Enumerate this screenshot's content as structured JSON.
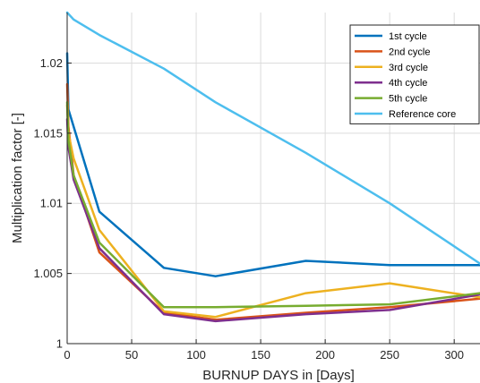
{
  "chart_data": {
    "type": "line",
    "title": "",
    "xlabel": "BURNUP DAYS in [Days]",
    "ylabel": "Multiplication factor [-]",
    "xlim": [
      0,
      320
    ],
    "ylim": [
      1.0,
      1.0236
    ],
    "xticks": [
      0,
      50,
      100,
      150,
      200,
      250,
      300
    ],
    "xtick_labels": [
      "0",
      "50",
      "100",
      "150",
      "200",
      "250",
      "300"
    ],
    "yticks": [
      1.0,
      1.005,
      1.01,
      1.015,
      1.02
    ],
    "ytick_labels": [
      "1",
      "1.005",
      "1.01",
      "1.015",
      "1.02"
    ],
    "grid": true,
    "legend_position": "top-right",
    "series": [
      {
        "name": "1st cycle",
        "color": "#0072BD",
        "x": [
          0,
          1,
          25,
          75,
          115,
          185,
          250,
          320
        ],
        "y": [
          1.0207,
          1.0167,
          1.0094,
          1.0054,
          1.0048,
          1.0059,
          1.0056,
          1.0056
        ]
      },
      {
        "name": "2nd cycle",
        "color": "#D95319",
        "x": [
          0,
          1,
          5,
          25,
          75,
          115,
          185,
          250,
          320
        ],
        "y": [
          1.0185,
          1.0155,
          1.012,
          1.0065,
          1.0022,
          1.0017,
          1.0022,
          1.0026,
          1.0032
        ]
      },
      {
        "name": "3rd cycle",
        "color": "#EDB120",
        "x": [
          0,
          1,
          5,
          25,
          75,
          115,
          185,
          250,
          320
        ],
        "y": [
          1.017,
          1.015,
          1.0132,
          1.0081,
          1.0023,
          1.0019,
          1.0036,
          1.0043,
          1.0033
        ]
      },
      {
        "name": "4th cycle",
        "color": "#7E2F8E",
        "x": [
          0,
          1,
          5,
          25,
          75,
          115,
          185,
          250,
          320
        ],
        "y": [
          1.016,
          1.014,
          1.0117,
          1.0068,
          1.0021,
          1.0016,
          1.0021,
          1.0024,
          1.0035
        ]
      },
      {
        "name": "5th cycle",
        "color": "#77AC30",
        "x": [
          0,
          1,
          5,
          25,
          75,
          115,
          185,
          250,
          320
        ],
        "y": [
          1.0172,
          1.0145,
          1.012,
          1.0072,
          1.0026,
          1.0026,
          1.0027,
          1.0028,
          1.0036
        ]
      },
      {
        "name": "Reference core",
        "color": "#4DBEEE",
        "x": [
          0,
          5,
          25,
          75,
          115,
          185,
          250,
          320
        ],
        "y": [
          1.0236,
          1.0231,
          1.022,
          1.0196,
          1.0172,
          1.0136,
          1.01,
          1.0057
        ]
      }
    ]
  }
}
